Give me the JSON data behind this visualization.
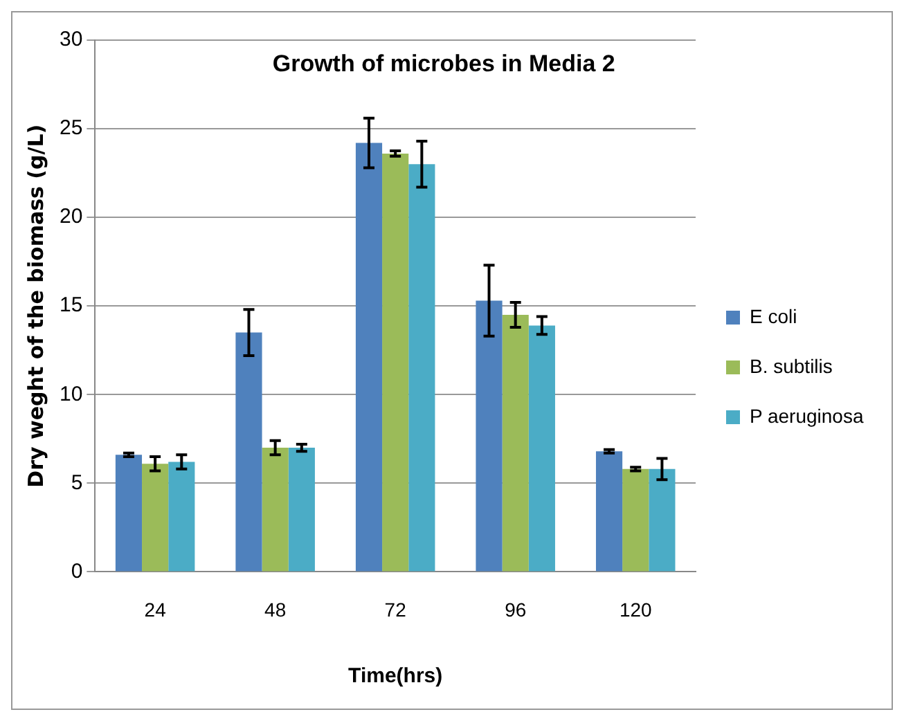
{
  "chart_data": {
    "type": "bar",
    "title": "Growth of microbes in Media 2",
    "xlabel": "Time(hrs)",
    "ylabel": "Dry weght of the biomass (g/L)",
    "categories": [
      "24",
      "48",
      "72",
      "96",
      "120"
    ],
    "series": [
      {
        "name": "E coli",
        "color": "#4f81bd",
        "values": [
          6.6,
          13.5,
          24.2,
          15.3,
          6.8
        ],
        "errors": [
          0.1,
          1.3,
          1.4,
          2.0,
          0.1
        ]
      },
      {
        "name": "B. subtilis",
        "color": "#9bbb59",
        "values": [
          6.1,
          7.0,
          23.6,
          14.5,
          5.8
        ],
        "errors": [
          0.4,
          0.4,
          0.15,
          0.7,
          0.1
        ]
      },
      {
        "name": "P aeruginosa",
        "color": "#4bacc6",
        "values": [
          6.2,
          7.0,
          23.0,
          13.9,
          5.8
        ],
        "errors": [
          0.4,
          0.2,
          1.3,
          0.5,
          0.6
        ]
      }
    ],
    "ylim": [
      0,
      30
    ],
    "yticks": [
      0,
      5,
      10,
      15,
      20,
      25,
      30
    ],
    "grid": "y",
    "legend": "right"
  }
}
